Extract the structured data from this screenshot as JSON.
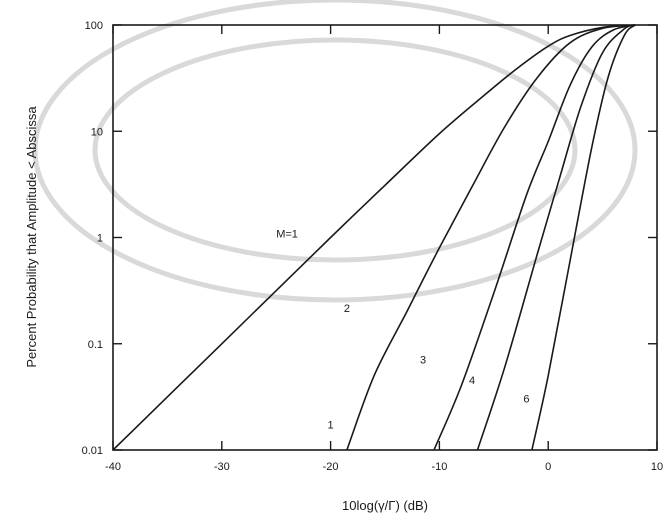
{
  "chart_data": {
    "type": "line",
    "xlabel": "10log(γ/Γ)  (dB)",
    "ylabel": "Percent Probability that Amplitude < Abscissa",
    "xlim": [
      -40,
      10
    ],
    "ylim": [
      0.01,
      100
    ],
    "y_scale": "log",
    "grid": false,
    "x_ticks": [
      -40,
      -30,
      -20,
      -10,
      0,
      10
    ],
    "x_tick_labels": [
      "-40",
      "-30",
      "-20",
      "-10",
      "0",
      "10"
    ],
    "y_ticks": [
      0.01,
      0.1,
      1,
      10,
      100
    ],
    "y_tick_labels": [
      "0.01",
      "0.1",
      "1",
      "10",
      "100"
    ],
    "series": [
      {
        "name": "M=1",
        "label_at": [
          -24,
          1
        ],
        "points": [
          [
            -40,
            0.01
          ],
          [
            -30,
            0.1
          ],
          [
            -20,
            1
          ],
          [
            -15,
            3.1
          ],
          [
            -10,
            9.5
          ],
          [
            -6,
            21.3
          ],
          [
            -3,
            38
          ],
          [
            0,
            63.2
          ],
          [
            2,
            79.6
          ],
          [
            5,
            95
          ],
          [
            8,
            100
          ]
        ]
      },
      {
        "name": "2",
        "label_at": [
          -18.5,
          0.2
        ],
        "points": [
          [
            -18.5,
            0.01
          ],
          [
            -16,
            0.05
          ],
          [
            -13,
            0.2
          ],
          [
            -10,
            0.8
          ],
          [
            -7,
            3
          ],
          [
            -4,
            11
          ],
          [
            -1,
            32
          ],
          [
            2,
            68
          ],
          [
            5,
            93
          ],
          [
            8,
            100
          ]
        ]
      },
      {
        "name": "3",
        "label_at": [
          -11.5,
          0.065
        ],
        "points": [
          [
            -10.5,
            0.01
          ],
          [
            -8,
            0.04
          ],
          [
            -5,
            0.3
          ],
          [
            -2,
            2.5
          ],
          [
            0,
            8
          ],
          [
            2,
            27
          ],
          [
            4,
            62
          ],
          [
            6,
            90
          ],
          [
            8,
            100
          ]
        ]
      },
      {
        "name": "4",
        "label_at": [
          -7,
          0.042
        ],
        "points": [
          [
            -6.5,
            0.01
          ],
          [
            -4,
            0.06
          ],
          [
            -1,
            0.7
          ],
          [
            1,
            3.5
          ],
          [
            3,
            17
          ],
          [
            5,
            55
          ],
          [
            7,
            92
          ],
          [
            8,
            100
          ]
        ]
      },
      {
        "name": "6",
        "label_at": [
          -2,
          0.028
        ],
        "points": [
          [
            -1.5,
            0.01
          ],
          [
            0,
            0.05
          ],
          [
            2,
            0.6
          ],
          [
            4,
            7
          ],
          [
            5.5,
            32
          ],
          [
            7,
            80
          ],
          [
            8,
            100
          ]
        ]
      }
    ],
    "annotations": [
      {
        "text": "1",
        "at": [
          -20,
          0.016
        ]
      }
    ]
  }
}
